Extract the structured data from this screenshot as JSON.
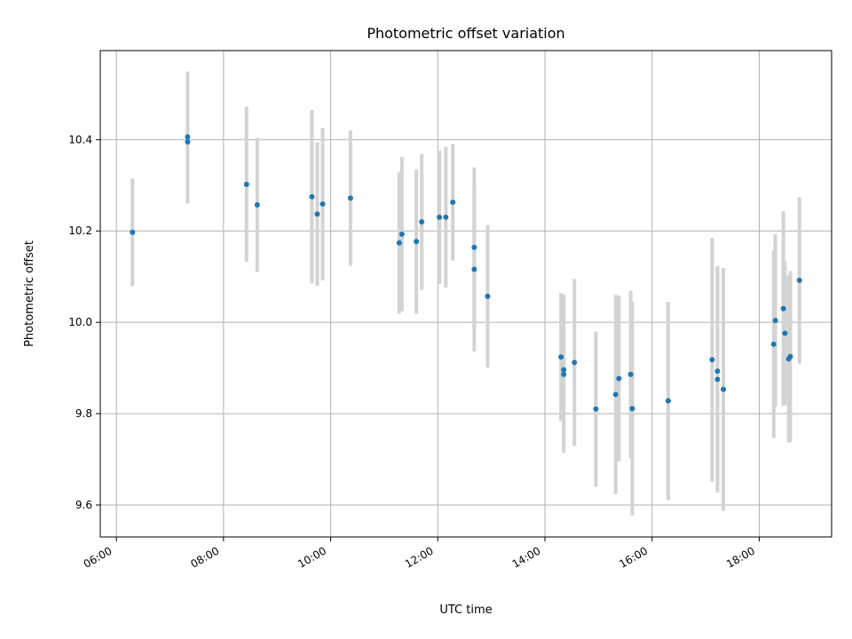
{
  "chart_data": {
    "type": "scatter",
    "title": "Photometric offset variation",
    "xlabel": "UTC time",
    "ylabel": "Photometric offset",
    "x_unit": "hours UTC",
    "xlim": [
      5.7,
      19.35
    ],
    "ylim": [
      9.53,
      10.595
    ],
    "xticks": [
      6,
      8,
      10,
      12,
      14,
      16,
      18
    ],
    "xtick_labels": [
      "06:00",
      "08:00",
      "10:00",
      "12:00",
      "14:00",
      "16:00",
      "18:00"
    ],
    "yticks": [
      9.6,
      9.8,
      10.0,
      10.2,
      10.4
    ],
    "ytick_labels": [
      "9.6",
      "9.8",
      "10.0",
      "10.2",
      "10.4"
    ],
    "grid": true,
    "point_color": "#1f77b4",
    "errorbar_color": "#d3d3d3",
    "points": [
      {
        "x": 6.3,
        "y": 10.197,
        "err": 0.118
      },
      {
        "x": 7.33,
        "y": 10.406,
        "err": 0.143
      },
      {
        "x": 7.33,
        "y": 10.395,
        "err": 0.135
      },
      {
        "x": 8.43,
        "y": 10.302,
        "err": 0.17
      },
      {
        "x": 8.63,
        "y": 10.257,
        "err": 0.147
      },
      {
        "x": 9.65,
        "y": 10.275,
        "err": 0.19
      },
      {
        "x": 9.75,
        "y": 10.237,
        "err": 0.157
      },
      {
        "x": 9.85,
        "y": 10.259,
        "err": 0.167
      },
      {
        "x": 10.37,
        "y": 10.272,
        "err": 0.148
      },
      {
        "x": 11.28,
        "y": 10.174,
        "err": 0.155
      },
      {
        "x": 11.33,
        "y": 10.193,
        "err": 0.169
      },
      {
        "x": 11.6,
        "y": 10.177,
        "err": 0.158
      },
      {
        "x": 11.7,
        "y": 10.22,
        "err": 0.149
      },
      {
        "x": 12.03,
        "y": 10.23,
        "err": 0.146
      },
      {
        "x": 12.15,
        "y": 10.23,
        "err": 0.154
      },
      {
        "x": 12.28,
        "y": 10.263,
        "err": 0.128
      },
      {
        "x": 12.68,
        "y": 10.164,
        "err": 0.175
      },
      {
        "x": 12.68,
        "y": 10.116,
        "err": 0.18
      },
      {
        "x": 12.93,
        "y": 10.057,
        "err": 0.156
      },
      {
        "x": 14.3,
        "y": 9.924,
        "err": 0.14
      },
      {
        "x": 14.35,
        "y": 9.896,
        "err": 0.165
      },
      {
        "x": 14.35,
        "y": 9.886,
        "err": 0.172
      },
      {
        "x": 14.55,
        "y": 9.912,
        "err": 0.183
      },
      {
        "x": 14.95,
        "y": 9.81,
        "err": 0.17
      },
      {
        "x": 15.32,
        "y": 9.842,
        "err": 0.218
      },
      {
        "x": 15.38,
        "y": 9.877,
        "err": 0.181
      },
      {
        "x": 15.6,
        "y": 9.886,
        "err": 0.183
      },
      {
        "x": 15.63,
        "y": 9.811,
        "err": 0.234
      },
      {
        "x": 16.3,
        "y": 9.828,
        "err": 0.217
      },
      {
        "x": 17.12,
        "y": 9.918,
        "err": 0.267
      },
      {
        "x": 17.22,
        "y": 9.893,
        "err": 0.227
      },
      {
        "x": 17.22,
        "y": 9.875,
        "err": 0.248
      },
      {
        "x": 17.33,
        "y": 9.853,
        "err": 0.266
      },
      {
        "x": 18.27,
        "y": 9.952,
        "err": 0.205
      },
      {
        "x": 18.3,
        "y": 10.004,
        "err": 0.189
      },
      {
        "x": 18.45,
        "y": 10.03,
        "err": 0.213
      },
      {
        "x": 18.48,
        "y": 9.976,
        "err": 0.158
      },
      {
        "x": 18.55,
        "y": 9.92,
        "err": 0.183
      },
      {
        "x": 18.58,
        "y": 9.925,
        "err": 0.187
      },
      {
        "x": 18.75,
        "y": 10.092,
        "err": 0.182
      }
    ]
  }
}
